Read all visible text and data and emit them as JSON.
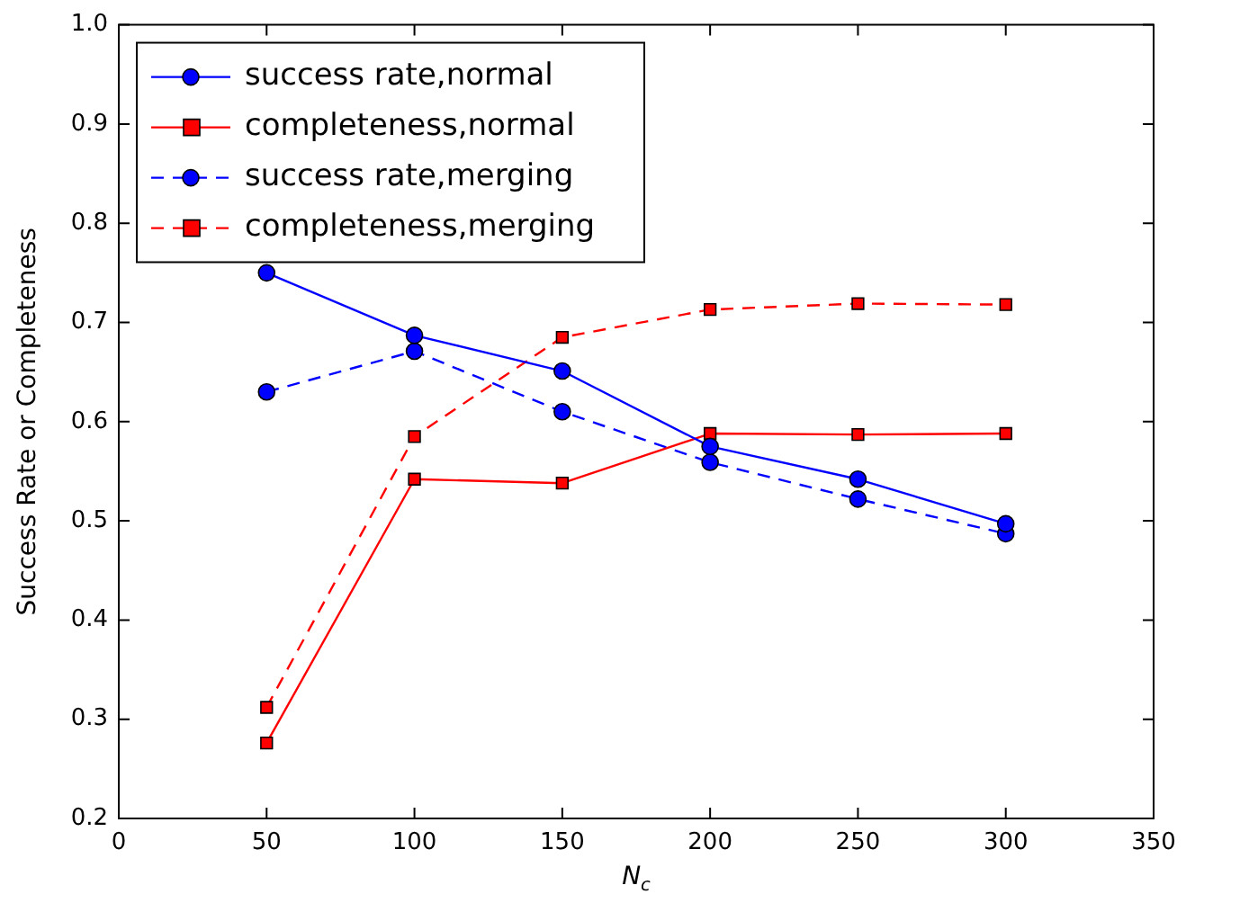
{
  "chart_data": {
    "type": "line",
    "xlabel": "N$_{c}$",
    "ylabel": "Success Rate or Completeness",
    "x": [
      50,
      100,
      150,
      200,
      250,
      300
    ],
    "series": [
      {
        "name": "success rate,normal",
        "color": "#0000ff",
        "marker": "circle",
        "line_style": "solid",
        "values": [
          0.75,
          0.687,
          0.651,
          0.575,
          0.542,
          0.497
        ]
      },
      {
        "name": "completeness,normal",
        "color": "#ff0000",
        "marker": "square",
        "line_style": "solid",
        "values": [
          0.276,
          0.542,
          0.538,
          0.588,
          0.587,
          0.588
        ]
      },
      {
        "name": "success rate,merging",
        "color": "#0000ff",
        "marker": "circle",
        "line_style": "dashed",
        "values": [
          0.63,
          0.671,
          0.61,
          0.559,
          0.522,
          0.487
        ]
      },
      {
        "name": "completeness,merging",
        "color": "#ff0000",
        "marker": "square",
        "line_style": "dashed",
        "values": [
          0.312,
          0.585,
          0.685,
          0.713,
          0.719,
          0.718
        ]
      }
    ],
    "xlim": [
      0,
      350
    ],
    "xticks": [
      0,
      50,
      100,
      150,
      200,
      250,
      300,
      350
    ],
    "ylim": [
      0.2,
      1.0
    ],
    "yticks": [
      0.2,
      0.3,
      0.4,
      0.5,
      0.6,
      0.7,
      0.8,
      0.9,
      {
        "value": 1,
        "label": "1.0"
      }
    ],
    "grid": false,
    "legend": "top left"
  }
}
